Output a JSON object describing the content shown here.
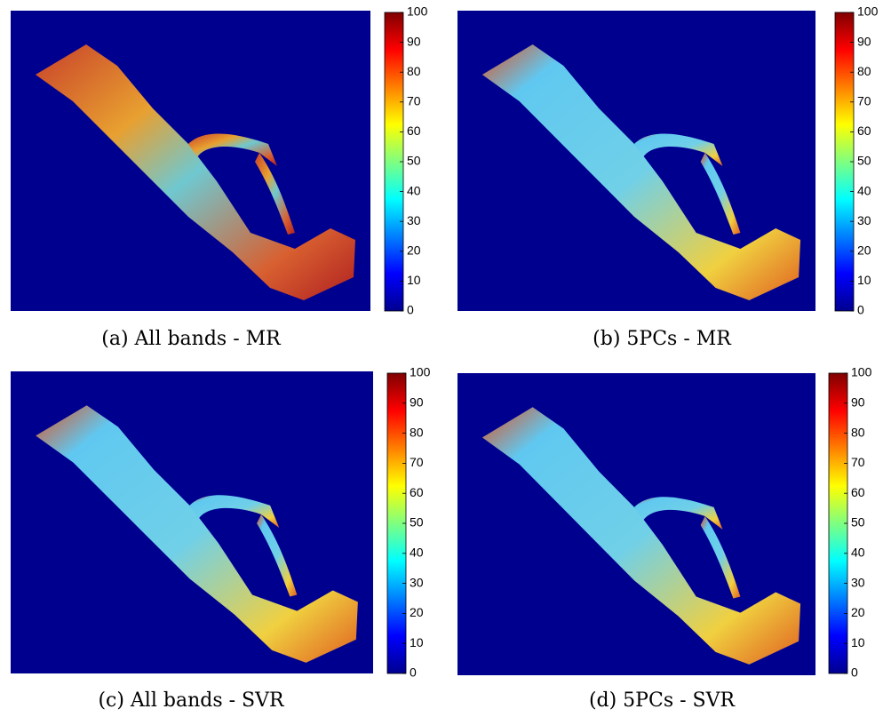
{
  "chart_data": [
    {
      "type": "map",
      "caption": "(a) All bands - MR",
      "colormap": "jet",
      "ylim": [
        0,
        100
      ],
      "yticks": [
        0,
        10,
        20,
        30,
        40,
        50,
        60,
        70,
        80,
        90,
        100
      ]
    },
    {
      "type": "map",
      "caption": "(b) 5PCs - MR",
      "colormap": "jet",
      "ylim": [
        0,
        100
      ],
      "yticks": [
        0,
        10,
        20,
        30,
        40,
        50,
        60,
        70,
        80,
        90,
        100
      ]
    },
    {
      "type": "map",
      "caption": "(c) All bands - SVR",
      "colormap": "jet",
      "ylim": [
        0,
        100
      ],
      "yticks": [
        0,
        10,
        20,
        30,
        40,
        50,
        60,
        70,
        80,
        90,
        100
      ]
    },
    {
      "type": "map",
      "caption": "(d) 5PCs - SVR",
      "colormap": "jet",
      "ylim": [
        0,
        100
      ],
      "yticks": [
        0,
        10,
        20,
        30,
        40,
        50,
        60,
        70,
        80,
        90,
        100
      ]
    }
  ]
}
